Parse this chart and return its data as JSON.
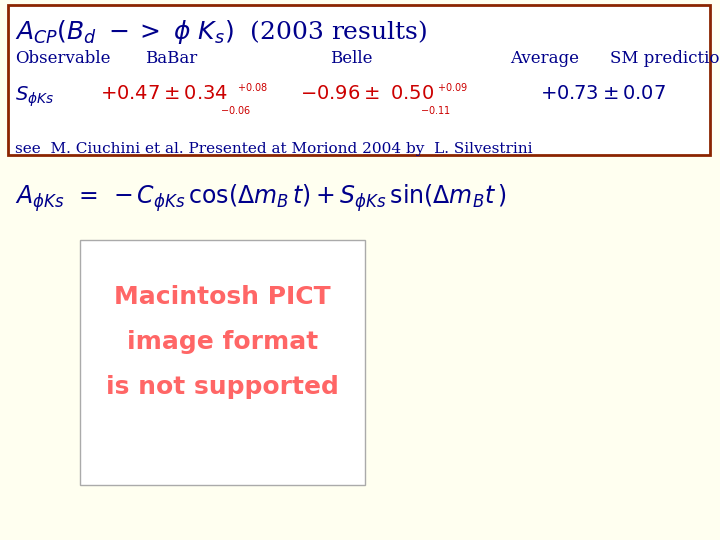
{
  "bg_color": "#fffff0",
  "box_bg": "#ffffff",
  "box_edge": "#8B2500",
  "title_color": "#00008B",
  "title_fontsize": 18,
  "header_color": "#00008B",
  "header_fontsize": 12,
  "row_label_color": "#00008B",
  "data_color": "#CC0000",
  "avg_color": "#00008B",
  "citation_color": "#00008B",
  "citation_fontsize": 11,
  "formula_color": "#00008B",
  "formula_fontsize": 17,
  "pict_text_color": "#FF6666",
  "pict_box_color": "#ffffff",
  "pict_fontsize": 18,
  "col_observable": "Observable",
  "col_babar": "BaBar",
  "col_belle": "Belle",
  "col_average": "Average",
  "col_sm": "SM prediction",
  "citation": "see  M. Ciuchini et al. Presented at Moriond 2004 by  L. Silvestrini",
  "pict_text_line1": "Macintosh PICT",
  "pict_text_line2": "image format",
  "pict_text_line3": "is not supported"
}
